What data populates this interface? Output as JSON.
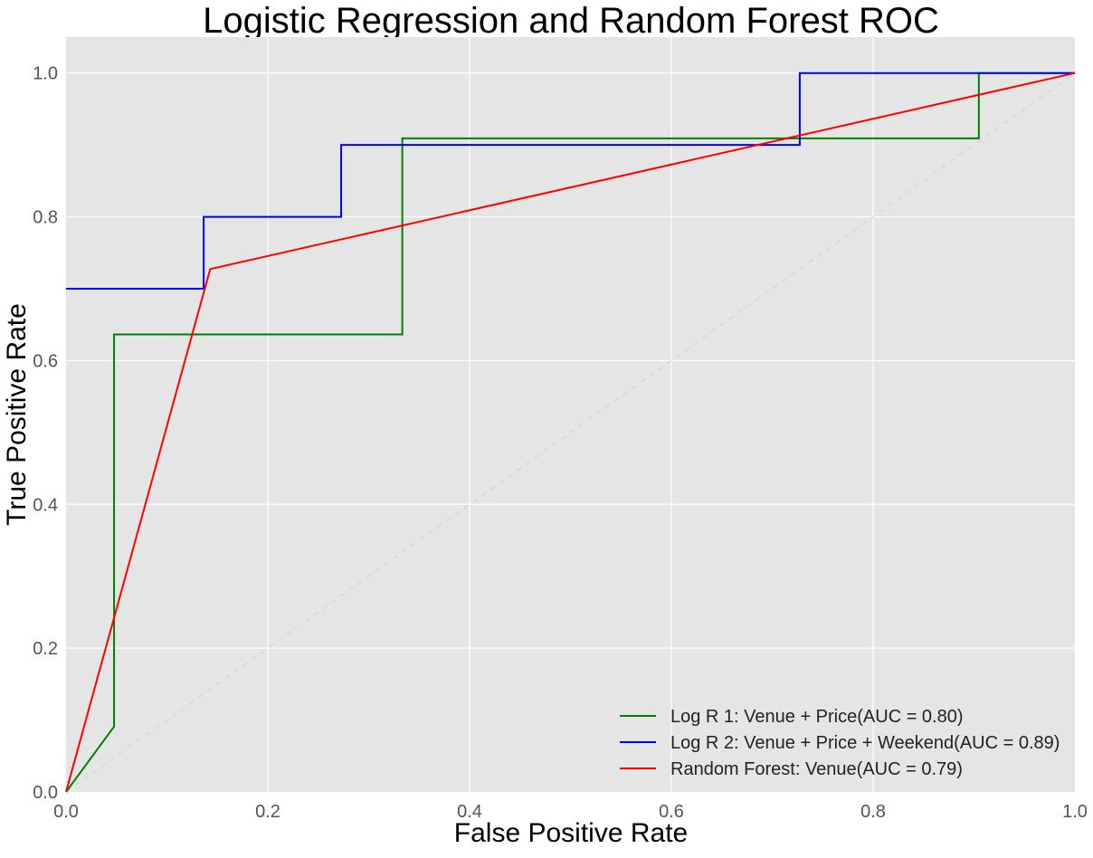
{
  "chart_data": {
    "type": "line",
    "title": "Logistic Regression and Random Forest ROC",
    "xlabel": "False Positive Rate",
    "ylabel": "True Positive Rate",
    "xlim": [
      0.0,
      1.0
    ],
    "ylim": [
      0.0,
      1.05
    ],
    "xticks": [
      0.0,
      0.2,
      0.4,
      0.6,
      0.8,
      1.0
    ],
    "xtick_labels": [
      "0.0",
      "0.2",
      "0.4",
      "0.6",
      "0.8",
      "1.0"
    ],
    "yticks": [
      0.0,
      0.2,
      0.4,
      0.6,
      0.8,
      1.0
    ],
    "ytick_labels": [
      "0.0",
      "0.2",
      "0.4",
      "0.6",
      "0.8",
      "1.0"
    ],
    "grid": true,
    "background": "#e5e5e5",
    "legend_position": "bottom-right",
    "diagonal": {
      "x": [
        0,
        1
      ],
      "y": [
        0,
        1
      ],
      "color": "#d0d0d0",
      "style": "dashed"
    },
    "series": [
      {
        "name": "Log R 1: Venue + Price(AUC = 0.80)",
        "color": "#008000",
        "x": [
          0.0,
          0.0476,
          0.0476,
          0.3333,
          0.3333,
          0.9048,
          0.9048,
          1.0
        ],
        "y": [
          0.0,
          0.0909,
          0.6364,
          0.6364,
          0.9091,
          0.9091,
          1.0,
          1.0
        ]
      },
      {
        "name": "Log R 2: Venue + Price + Weekend(AUC = 0.89)",
        "color": "#0000ff",
        "x": [
          0.0,
          0.1364,
          0.1364,
          0.2727,
          0.2727,
          0.7273,
          0.7273,
          1.0
        ],
        "y": [
          0.7,
          0.7,
          0.8,
          0.8,
          0.9,
          0.9,
          1.0,
          1.0
        ]
      },
      {
        "name": "Random Forest: Venue(AUC = 0.79)",
        "color": "#ff0000",
        "x": [
          0.0,
          0.1429,
          1.0
        ],
        "y": [
          0.0,
          0.7273,
          1.0
        ]
      }
    ]
  }
}
